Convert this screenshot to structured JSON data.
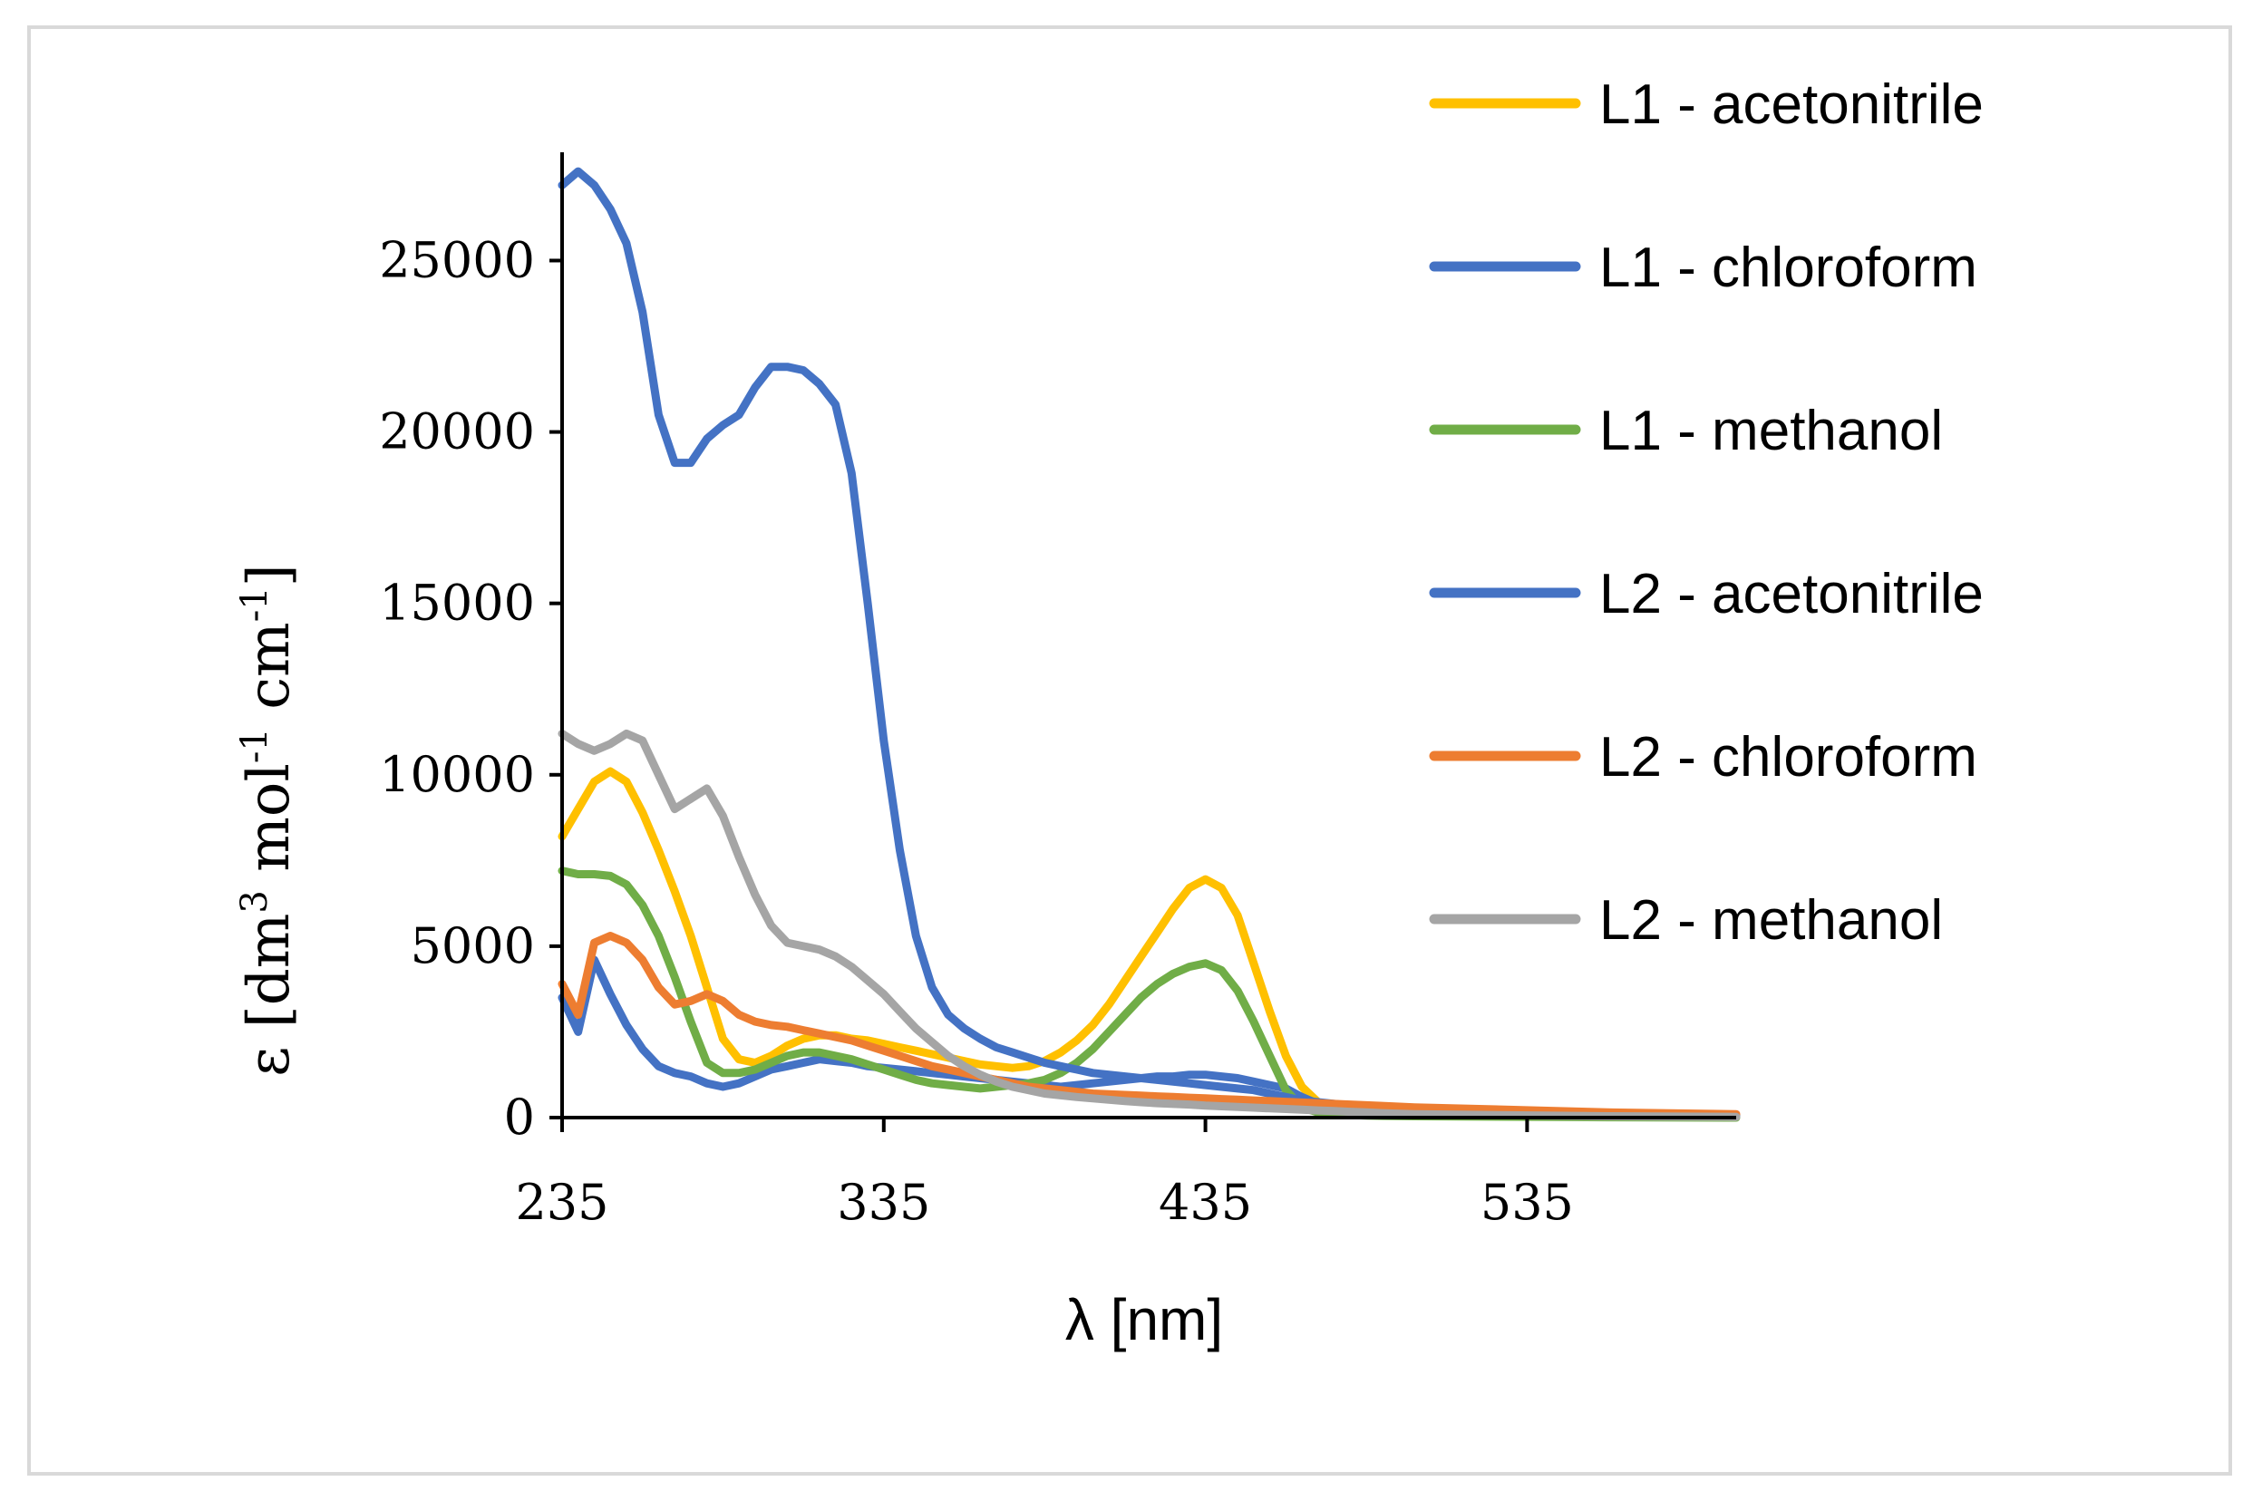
{
  "chart_data": {
    "type": "line",
    "title": "",
    "xlabel": "λ [nm]",
    "ylabel_parts": {
      "base": "ε [dm",
      "exp1": "3",
      "mid": " mol",
      "exp2": "-1",
      "mid2": " cm",
      "exp3": "-1",
      "end": "]"
    },
    "xlim": [
      235,
      600
    ],
    "ylim": [
      0,
      28000
    ],
    "xticks": [
      235,
      335,
      435,
      535
    ],
    "yticks": [
      0,
      5000,
      10000,
      15000,
      20000,
      25000
    ],
    "xtick_labels": [
      "235",
      "335",
      "435",
      "535"
    ],
    "ytick_labels": [
      "0",
      "5000",
      "10000",
      "15000",
      "20000",
      "25000"
    ],
    "legend_position": "right",
    "series": [
      {
        "name": "L1 - acetonitrile",
        "color": "#FFC000",
        "x": [
          235,
          240,
          245,
          250,
          255,
          260,
          265,
          270,
          275,
          280,
          285,
          290,
          295,
          300,
          305,
          310,
          315,
          320,
          325,
          330,
          335,
          340,
          345,
          350,
          355,
          360,
          365,
          370,
          375,
          380,
          385,
          390,
          395,
          400,
          405,
          410,
          415,
          420,
          425,
          430,
          435,
          440,
          445,
          450,
          455,
          460,
          465,
          470,
          475,
          480,
          485,
          490,
          500,
          520,
          540,
          560,
          600
        ],
        "y": [
          8200,
          9000,
          9800,
          10100,
          9800,
          8900,
          7800,
          6600,
          5300,
          3800,
          2300,
          1700,
          1600,
          1800,
          2100,
          2300,
          2400,
          2400,
          2300,
          2250,
          2150,
          2050,
          1950,
          1850,
          1750,
          1650,
          1550,
          1500,
          1450,
          1500,
          1650,
          1900,
          2250,
          2700,
          3300,
          4000,
          4700,
          5400,
          6100,
          6700,
          6950,
          6700,
          5900,
          4500,
          3100,
          1800,
          900,
          450,
          250,
          150,
          120,
          100,
          90,
          80,
          70,
          60,
          50
        ]
      },
      {
        "name": "L1 - chloroform",
        "color": "#4472C4",
        "x": [
          235,
          240,
          245,
          250,
          255,
          260,
          265,
          270,
          275,
          280,
          285,
          290,
          295,
          300,
          305,
          310,
          315,
          320,
          325,
          330,
          335,
          340,
          345,
          350,
          355,
          360,
          365,
          370,
          375,
          380,
          385,
          390,
          395,
          400,
          405,
          410,
          415,
          420,
          425,
          430,
          435,
          440,
          445,
          450,
          455,
          460,
          465,
          470,
          475,
          480,
          485,
          490,
          500,
          520,
          540,
          560,
          600
        ],
        "y": [
          3500,
          2500,
          4600,
          3600,
          2700,
          2000,
          1500,
          1300,
          1200,
          1000,
          900,
          1000,
          1200,
          1400,
          1500,
          1600,
          1700,
          1650,
          1600,
          1500,
          1450,
          1400,
          1350,
          1300,
          1250,
          1200,
          1150,
          1100,
          1050,
          1000,
          950,
          900,
          950,
          1000,
          1050,
          1100,
          1150,
          1200,
          1200,
          1250,
          1250,
          1200,
          1150,
          1050,
          950,
          850,
          600,
          400,
          300,
          250,
          200,
          180,
          150,
          120,
          100,
          80,
          60
        ]
      },
      {
        "name": "L1 - methanol",
        "color": "#70AD47",
        "x": [
          235,
          240,
          245,
          250,
          255,
          260,
          265,
          270,
          275,
          280,
          285,
          290,
          295,
          300,
          305,
          310,
          315,
          320,
          325,
          330,
          335,
          340,
          345,
          350,
          355,
          360,
          365,
          370,
          375,
          380,
          385,
          390,
          395,
          400,
          405,
          410,
          415,
          420,
          425,
          430,
          435,
          440,
          445,
          450,
          455,
          460,
          465,
          470,
          475,
          480,
          485,
          490,
          500,
          520,
          540,
          560,
          600
        ],
        "y": [
          7200,
          7100,
          7100,
          7050,
          6800,
          6200,
          5300,
          4100,
          2800,
          1600,
          1300,
          1300,
          1400,
          1600,
          1800,
          1900,
          1900,
          1800,
          1700,
          1550,
          1400,
          1250,
          1100,
          1000,
          950,
          900,
          850,
          900,
          950,
          1000,
          1100,
          1300,
          1600,
          2000,
          2500,
          3000,
          3500,
          3900,
          4200,
          4400,
          4500,
          4300,
          3700,
          2800,
          1800,
          800,
          300,
          150,
          100,
          80,
          60,
          50,
          40,
          30,
          20,
          10,
          0
        ]
      },
      {
        "name": "L2 - acetonitrile",
        "color": "#4472C4",
        "x": [
          235,
          240,
          245,
          250,
          255,
          260,
          265,
          270,
          275,
          280,
          285,
          290,
          295,
          300,
          305,
          310,
          315,
          320,
          325,
          330,
          335,
          340,
          345,
          350,
          355,
          360,
          365,
          370,
          375,
          380,
          385,
          390,
          395,
          400,
          405,
          410,
          415,
          420,
          425,
          430,
          435,
          440,
          445,
          450,
          455,
          460,
          465,
          470,
          475,
          480,
          485,
          490,
          500,
          520,
          540,
          560,
          600
        ],
        "y": [
          27200,
          27600,
          27200,
          26500,
          25500,
          23500,
          20500,
          19100,
          19100,
          19800,
          20200,
          20500,
          21300,
          21900,
          21900,
          21800,
          21400,
          20800,
          18800,
          15000,
          11000,
          7800,
          5300,
          3800,
          3000,
          2600,
          2300,
          2050,
          1900,
          1750,
          1600,
          1500,
          1400,
          1300,
          1250,
          1200,
          1150,
          1100,
          1050,
          1000,
          950,
          900,
          850,
          800,
          700,
          600,
          500,
          450,
          400,
          350,
          300,
          250,
          200,
          150,
          100,
          80,
          50
        ]
      },
      {
        "name": "L2 - chloroform",
        "color": "#ED7D31",
        "x": [
          235,
          240,
          245,
          250,
          255,
          260,
          265,
          270,
          275,
          280,
          285,
          290,
          295,
          300,
          305,
          310,
          315,
          320,
          325,
          330,
          335,
          340,
          345,
          350,
          355,
          360,
          365,
          370,
          375,
          380,
          385,
          390,
          395,
          400,
          405,
          410,
          415,
          420,
          425,
          430,
          435,
          440,
          445,
          450,
          455,
          460,
          465,
          470,
          475,
          480,
          485,
          490,
          500,
          520,
          540,
          560,
          600
        ],
        "y": [
          3900,
          3000,
          5100,
          5300,
          5100,
          4600,
          3800,
          3300,
          3400,
          3600,
          3400,
          3000,
          2800,
          2700,
          2650,
          2550,
          2450,
          2350,
          2250,
          2100,
          1950,
          1800,
          1650,
          1500,
          1400,
          1300,
          1200,
          1100,
          1000,
          900,
          850,
          800,
          750,
          700,
          680,
          660,
          640,
          620,
          600,
          580,
          560,
          540,
          520,
          500,
          480,
          460,
          440,
          420,
          400,
          380,
          360,
          340,
          300,
          250,
          200,
          150,
          100
        ]
      },
      {
        "name": "L2 - methanol",
        "color": "#A5A5A5",
        "x": [
          235,
          240,
          245,
          250,
          255,
          260,
          265,
          270,
          275,
          280,
          285,
          290,
          295,
          300,
          305,
          310,
          315,
          320,
          325,
          330,
          335,
          340,
          345,
          350,
          355,
          360,
          365,
          370,
          375,
          380,
          385,
          390,
          395,
          400,
          405,
          410,
          415,
          420,
          425,
          430,
          435,
          440,
          445,
          450,
          455,
          460,
          465,
          470,
          475,
          480,
          485,
          490,
          500,
          520,
          540,
          560,
          600
        ],
        "y": [
          11200,
          10900,
          10700,
          10900,
          11200,
          11000,
          10000,
          9000,
          9300,
          9600,
          8800,
          7600,
          6500,
          5600,
          5100,
          5000,
          4900,
          4700,
          4400,
          4000,
          3600,
          3100,
          2600,
          2200,
          1800,
          1500,
          1250,
          1050,
          900,
          800,
          700,
          650,
          600,
          560,
          520,
          480,
          450,
          420,
          400,
          380,
          350,
          330,
          310,
          290,
          270,
          250,
          230,
          210,
          190,
          170,
          150,
          130,
          100,
          80,
          60,
          40,
          20
        ]
      }
    ]
  }
}
